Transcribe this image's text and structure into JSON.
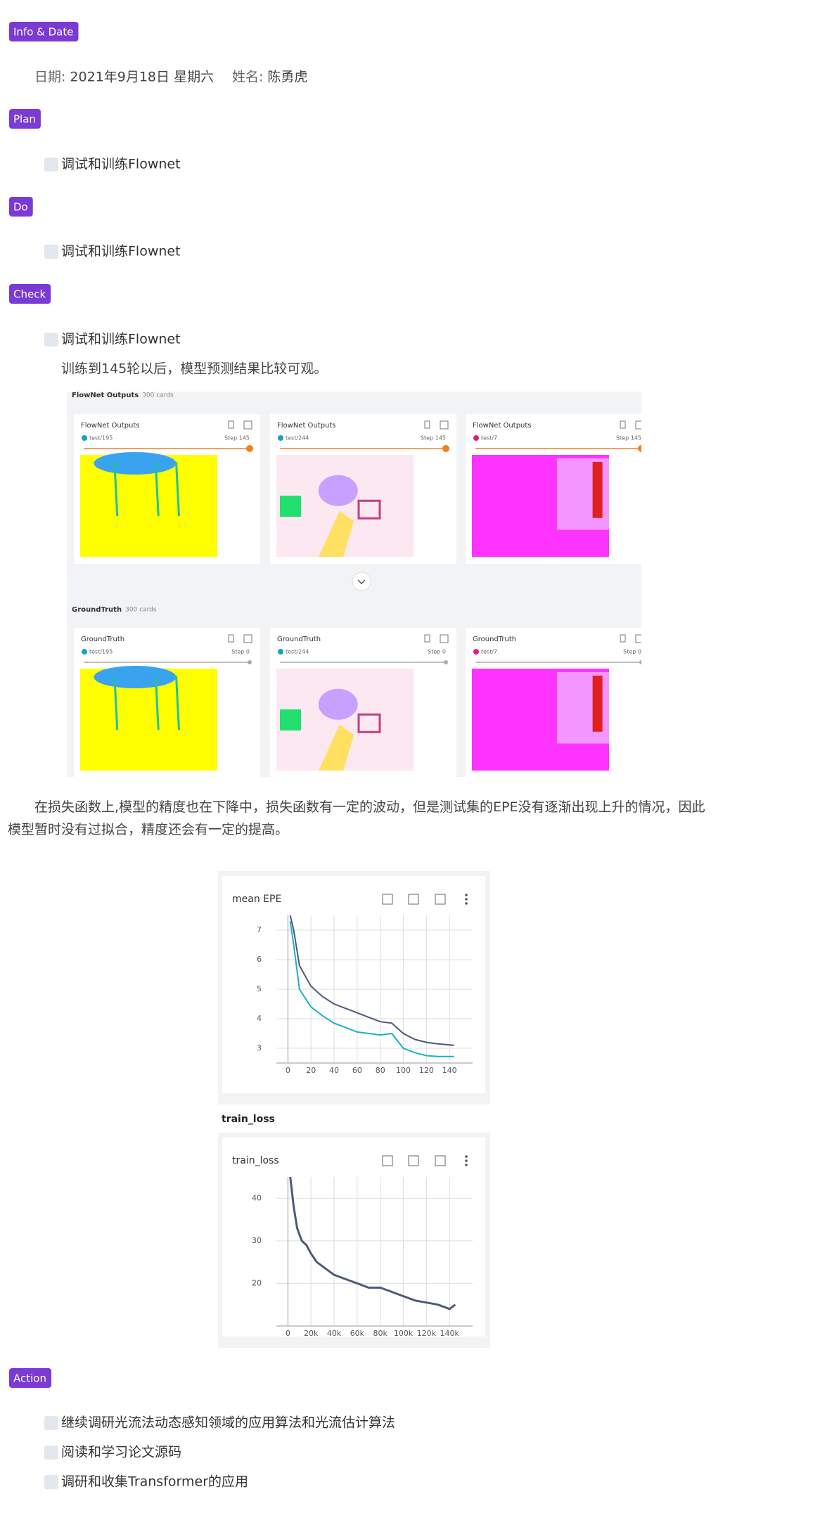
{
  "info": {
    "tag": "Info & Date",
    "date_label": "日期:",
    "date": "2021年9月18日 星期六",
    "name_label": "姓名:",
    "name": "陈勇虎"
  },
  "plan": {
    "tag": "Plan",
    "items": [
      "调试和训练Flownet"
    ]
  },
  "do": {
    "tag": "Do",
    "items": [
      "调试和训练Flownet"
    ]
  },
  "check": {
    "tag": "Check",
    "items": [
      "调试和训练Flownet"
    ],
    "note": "训练到145轮以后，模型预测结果比较可观。",
    "image_panel": {
      "sections": [
        {
          "title": "FlowNet Outputs",
          "count": "300 cards",
          "cards": [
            {
              "title": "FlowNet Outputs",
              "run": "test/195",
              "step": "Step 145"
            },
            {
              "title": "FlowNet Outputs",
              "run": "test/244",
              "step": "Step 145"
            },
            {
              "title": "FlowNet Outputs",
              "run": "test/7",
              "step": "Step 145"
            }
          ]
        },
        {
          "title": "GroundTruth",
          "count": "300 cards",
          "cards": [
            {
              "title": "GroundTruth",
              "run": "test/195",
              "step": "Step 0"
            },
            {
              "title": "GroundTruth",
              "run": "test/244",
              "step": "Step 0"
            },
            {
              "title": "GroundTruth",
              "run": "test/7",
              "step": "Step 0"
            }
          ]
        }
      ]
    },
    "paragraph": "在损失函数上,模型的精度也在下降中，损失函数有一定的波动，但是测试集的EPE没有逐渐出现上升的情况，因此模型暂时没有过拟合，精度还会有一定的提高。",
    "charts": [
      {
        "type": "line",
        "title": "mean EPE",
        "x": [
          2,
          5,
          10,
          20,
          30,
          40,
          50,
          60,
          70,
          80,
          90,
          100,
          110,
          120,
          130,
          144
        ],
        "xlim": [
          -10,
          160
        ],
        "xticks": [
          0,
          20,
          40,
          60,
          80,
          100,
          120,
          140
        ],
        "ylim": [
          2.5,
          7.5
        ],
        "yticks": [
          3,
          4,
          5,
          6,
          7
        ],
        "grid": true,
        "series": [
          {
            "color": "#4c5a7a",
            "values": [
              7.5,
              7.0,
              5.8,
              5.1,
              4.75,
              4.5,
              4.35,
              4.2,
              4.05,
              3.9,
              3.85,
              3.5,
              3.3,
              3.2,
              3.15,
              3.1
            ]
          },
          {
            "color": "#1ab0c8",
            "values": [
              7.3,
              6.5,
              5.0,
              4.4,
              4.1,
              3.85,
              3.7,
              3.55,
              3.5,
              3.45,
              3.5,
              3.0,
              2.85,
              2.75,
              2.72,
              2.72
            ]
          }
        ]
      },
      {
        "type": "line",
        "caption": "train_loss",
        "title": "train_loss",
        "x": [
          2000,
          5000,
          8000,
          12000,
          16000,
          20000,
          25000,
          30000,
          35000,
          40000,
          50000,
          60000,
          70000,
          80000,
          90000,
          100000,
          110000,
          120000,
          130000,
          140000,
          145000
        ],
        "xlim": [
          -10000,
          160000
        ],
        "xticks": [
          0,
          {
            "value": 20000,
            "label": "20k"
          },
          {
            "value": 40000,
            "label": "40k"
          },
          {
            "value": 60000,
            "label": "60k"
          },
          {
            "value": 80000,
            "label": "80k"
          },
          {
            "value": 100000,
            "label": "100k"
          },
          {
            "value": 120000,
            "label": "120k"
          },
          {
            "value": 140000,
            "label": "140k"
          }
        ],
        "ylim": [
          10,
          45
        ],
        "yticks": [
          20,
          30,
          40
        ],
        "grid": true,
        "series": [
          {
            "color": "#4c5a7a",
            "values": [
              45,
              38,
              33,
              30,
              29,
              27,
              25,
              24,
              23,
              22,
              21,
              20,
              19,
              19,
              18,
              17,
              16,
              15.5,
              15,
              14,
              15
            ]
          }
        ]
      }
    ]
  },
  "action": {
    "tag": "Action",
    "items": [
      "继续调研光流法动态感知领域的应用算法和光流估计算法",
      "阅读和学习论文源码",
      "调研和收集Transformer的应用"
    ]
  }
}
